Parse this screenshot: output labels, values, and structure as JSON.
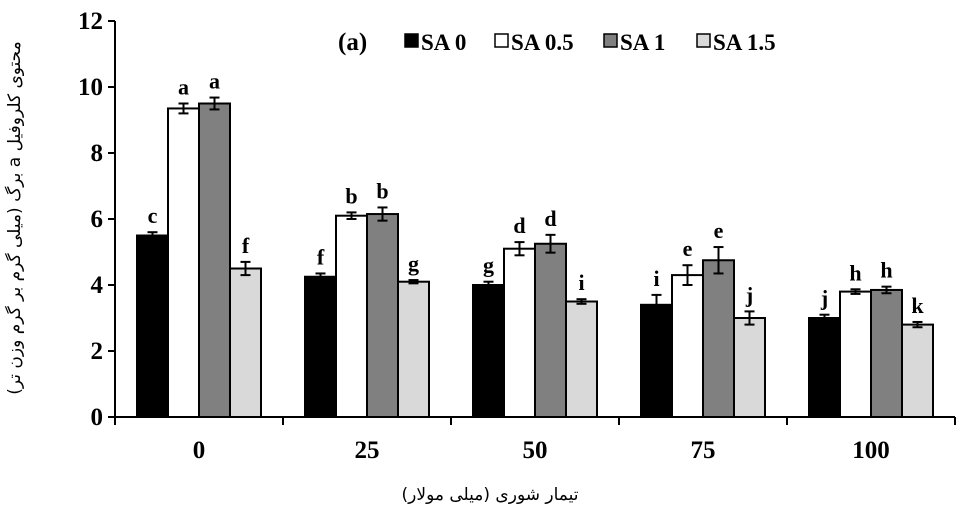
{
  "chart_data": {
    "type": "bar",
    "panel_label": "(a)",
    "xlabel": "تیمار شوری (میلی مولار)",
    "ylabel": "محتوی کلروفیل a برگ (میلی گرم بر گرم وزن تر)",
    "categories": [
      "0",
      "25",
      "50",
      "75",
      "100"
    ],
    "ylim": [
      0,
      12
    ],
    "yticks": [
      "0",
      "2",
      "4",
      "6",
      "8",
      "10",
      "12"
    ],
    "grid": false,
    "legend_position": "top-right",
    "series": [
      {
        "name": "SA 0",
        "color": "#000000",
        "values": [
          5.5,
          4.25,
          4.0,
          3.4,
          3.0
        ],
        "errors": [
          0.1,
          0.1,
          0.1,
          0.3,
          0.1
        ],
        "letters": [
          "c",
          "f",
          "g",
          "i",
          "j"
        ]
      },
      {
        "name": "SA 0.5",
        "color": "#ffffff",
        "values": [
          9.35,
          6.1,
          5.1,
          4.3,
          3.8
        ],
        "errors": [
          0.15,
          0.1,
          0.2,
          0.3,
          0.07
        ],
        "letters": [
          "a",
          "b",
          "d",
          "e",
          "h"
        ]
      },
      {
        "name": "SA 1",
        "color": "#808080",
        "values": [
          9.5,
          6.15,
          5.25,
          4.75,
          3.85
        ],
        "errors": [
          0.18,
          0.2,
          0.27,
          0.4,
          0.1
        ],
        "letters": [
          "a",
          "b",
          "d",
          "e",
          "h"
        ]
      },
      {
        "name": "SA 1.5",
        "color": "#d9d9d9",
        "values": [
          4.5,
          4.1,
          3.5,
          3.0,
          2.8
        ],
        "errors": [
          0.2,
          0.05,
          0.07,
          0.2,
          0.08
        ],
        "letters": [
          "f",
          "g",
          "i",
          "j",
          "k"
        ]
      }
    ]
  }
}
